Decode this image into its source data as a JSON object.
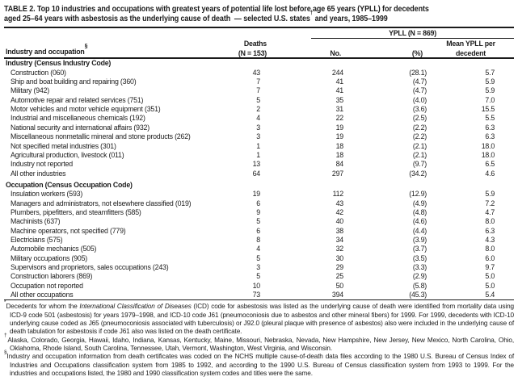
{
  "colors": {
    "text": "#1b1b1b",
    "rule": "#1b1b1b",
    "background": "#ffffff"
  },
  "table": {
    "title_segments": [
      {
        "text": "TABLE 2. Top 10 industries and occupations with greatest years of potential life lost before age 65 years (YPLL) for decedents"
      },
      {
        "br": true
      },
      {
        "text": "aged 25–64 years with asbestosis as the underlying cause of death"
      },
      {
        "sup": "*"
      },
      {
        "text": " — selected U.S. states"
      },
      {
        "sup": "†"
      },
      {
        "text": " and years, 1985–1999"
      }
    ],
    "columns": {
      "industry_segments": [
        {
          "text": "Industry and occupation"
        },
        {
          "sup": "§"
        }
      ],
      "deaths_line1": "Deaths",
      "deaths_line2": "(N = 153)",
      "ypll_group": "YPLL (N = 869)",
      "no": "No.",
      "pct": "(%)",
      "mean_line1": "Mean YPLL per",
      "mean_line2": "decedent"
    },
    "sections": [
      {
        "header": "Industry (Census Industry Code)",
        "rows": [
          {
            "label": "Construction (060)",
            "deaths": "43",
            "no": "244",
            "pct": "(28.1)",
            "mean": "5.7"
          },
          {
            "label": "Ship and boat building and repairing (360)",
            "deaths": "7",
            "no": "41",
            "pct": "(4.7)",
            "mean": "5.9"
          },
          {
            "label": "Military (942)",
            "deaths": "7",
            "no": "41",
            "pct": "(4.7)",
            "mean": "5.9"
          },
          {
            "label": "Automotive repair and related services (751)",
            "deaths": "5",
            "no": "35",
            "pct": "(4.0)",
            "mean": "7.0"
          },
          {
            "label": "Motor vehicles and motor vehicle equipment (351)",
            "deaths": "2",
            "no": "31",
            "pct": "(3.6)",
            "mean": "15.5"
          },
          {
            "label": "Industrial and miscellaneous chemicals (192)",
            "deaths": "4",
            "no": "22",
            "pct": "(2.5)",
            "mean": "5.5"
          },
          {
            "label": "National security and international affairs (932)",
            "deaths": "3",
            "no": "19",
            "pct": "(2.2)",
            "mean": "6.3"
          },
          {
            "label": "Miscellaneous nonmetallic mineral and stone products (262)",
            "deaths": "3",
            "no": "19",
            "pct": "(2.2)",
            "mean": "6.3"
          },
          {
            "label": "Not specified metal industries (301)",
            "deaths": "1",
            "no": "18",
            "pct": "(2.1)",
            "mean": "18.0"
          },
          {
            "label": "Agricultural production, livestock (011)",
            "deaths": "1",
            "no": "18",
            "pct": "(2.1)",
            "mean": "18.0"
          },
          {
            "label": "Industry not reported",
            "deaths": "13",
            "no": "84",
            "pct": "(9.7)",
            "mean": "6.5"
          },
          {
            "label": "All other industries",
            "deaths": "64",
            "no": "297",
            "pct": "(34.2)",
            "mean": "4.6"
          }
        ]
      },
      {
        "header": "Occupation (Census Occupation Code)",
        "rows": [
          {
            "label": "Insulation workers (593)",
            "deaths": "19",
            "no": "112",
            "pct": "(12.9)",
            "mean": "5.9"
          },
          {
            "label": "Managers and administrators, not elsewhere classified (019)",
            "deaths": "6",
            "no": "43",
            "pct": "(4.9)",
            "mean": "7.2"
          },
          {
            "label": "Plumbers, pipefitters, and steamfitters (585)",
            "deaths": "9",
            "no": "42",
            "pct": "(4.8)",
            "mean": "4.7"
          },
          {
            "label": "Machinists (637)",
            "deaths": "5",
            "no": "40",
            "pct": "(4.6)",
            "mean": "8.0"
          },
          {
            "label": "Machine operators, not specified (779)",
            "deaths": "6",
            "no": "38",
            "pct": "(4.4)",
            "mean": "6.3"
          },
          {
            "label": "Electricians (575)",
            "deaths": "8",
            "no": "34",
            "pct": "(3.9)",
            "mean": "4.3"
          },
          {
            "label": "Automobile mechanics (505)",
            "deaths": "4",
            "no": "32",
            "pct": "(3.7)",
            "mean": "8.0"
          },
          {
            "label": "Military occupations (905)",
            "deaths": "5",
            "no": "30",
            "pct": "(3.5)",
            "mean": "6.0"
          },
          {
            "label": "Supervisors and proprietors, sales occupations (243)",
            "deaths": "3",
            "no": "29",
            "pct": "(3.3)",
            "mean": "9.7"
          },
          {
            "label": "Construction laborers (869)",
            "deaths": "5",
            "no": "25",
            "pct": "(2.9)",
            "mean": "5.0"
          },
          {
            "label": "Occupation not reported",
            "deaths": "10",
            "no": "50",
            "pct": "(5.8)",
            "mean": "5.0"
          },
          {
            "label": "All other occupations",
            "deaths": "73",
            "no": "394",
            "pct": "(45.3)",
            "mean": "5.4"
          }
        ]
      }
    ],
    "footnotes": [
      {
        "marker": "*",
        "segments": [
          {
            "text": "Decedents for whom the "
          },
          {
            "text": "International Classification of Diseases",
            "italic": true
          },
          {
            "text": " (ICD) code for asbestosis was listed as the underlying cause of death were identified from mortality data using ICD-9 code 501 (asbestosis) for years 1979–1998, and ICD-10 code J61 (pneumoconiosis due to asbestos and other mineral fibers) for 1999. For 1999, decedents with ICD-10 underlying cause coded as J65 (pneumoconiosis associated with tuberculosis) or J92.0 (pleural plaque with presence of asbestos) also were included in the underlying cause of death tabulation for asbestosis if code J61 also was listed on the death certificate."
          }
        ]
      },
      {
        "marker": "†",
        "segments": [
          {
            "text": "Alaska, Colorado, Georgia, Hawaii, Idaho, Indiana, Kansas, Kentucky, Maine, Missouri, Nebraska, Nevada, New Hampshire, New Jersey, New Mexico, North Carolina, Ohio, Oklahoma, Rhode Island, South Carolina, Tennessee, Utah, Vermont, Washington, West Virginia, and Wisconsin."
          }
        ]
      },
      {
        "marker": "§",
        "segments": [
          {
            "text": "Industry and occupation information from death certificates was coded on the NCHS multiple cause-of-death data files according to the 1980 U.S. Bureau of Census Index of Industries and Occupations classification system from 1985 to 1992, and according to the 1990 U.S. Bureau of Census classification system from 1993 to 1999. For the industries and occupations listed, the 1980 and 1990 classification system codes and titles were the same."
          }
        ]
      }
    ]
  }
}
